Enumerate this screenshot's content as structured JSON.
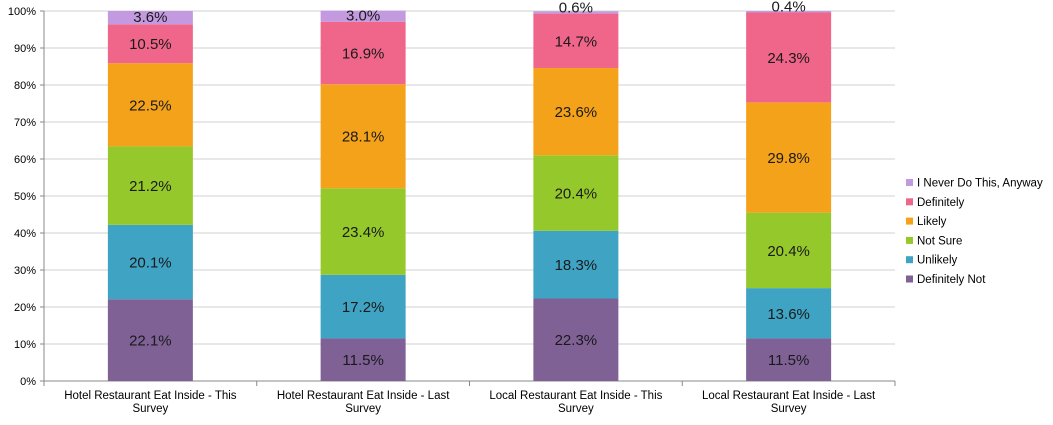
{
  "chart_data": {
    "type": "bar",
    "stacked": true,
    "percent": true,
    "categories": [
      [
        "Hotel Restaurant Eat Inside - This",
        "Survey"
      ],
      [
        "Hotel Restaurant Eat Inside - Last",
        "Survey"
      ],
      [
        "Local Restaurant Eat Inside - This",
        "Survey"
      ],
      [
        "Local Restaurant Eat Inside - Last",
        "Survey"
      ]
    ],
    "series": [
      {
        "name": "Definitely Not",
        "color": "#7f6196",
        "values": [
          22.1,
          11.5,
          22.3,
          11.5
        ],
        "labels": [
          "22.1%",
          "11.5%",
          "22.3%",
          "11.5%"
        ]
      },
      {
        "name": "Unlikely",
        "color": "#3fa3c4",
        "values": [
          20.1,
          17.2,
          18.3,
          13.6
        ],
        "labels": [
          "20.1%",
          "17.2%",
          "18.3%",
          "13.6%"
        ]
      },
      {
        "name": "Not Sure",
        "color": "#95c92b",
        "values": [
          21.2,
          23.4,
          20.4,
          20.4
        ],
        "labels": [
          "21.2%",
          "23.4%",
          "20.4%",
          "20.4%"
        ]
      },
      {
        "name": "Likely",
        "color": "#f5a21b",
        "values": [
          22.5,
          28.1,
          23.6,
          29.8
        ],
        "labels": [
          "22.5%",
          "28.1%",
          "23.6%",
          "29.8%"
        ]
      },
      {
        "name": "Definitely",
        "color": "#f0668a",
        "values": [
          10.5,
          16.9,
          14.7,
          24.3
        ],
        "labels": [
          "10.5%",
          "16.9%",
          "14.7%",
          "24.3%"
        ]
      },
      {
        "name": "I Never Do This, Anyway",
        "color": "#c39ae0",
        "values": [
          3.6,
          3.0,
          0.6,
          0.4
        ],
        "labels": [
          "3.6%",
          "3.0%",
          "0.6%",
          "0.4%"
        ]
      }
    ],
    "yticks": [
      "0%",
      "10%",
      "20%",
      "30%",
      "40%",
      "50%",
      "60%",
      "70%",
      "80%",
      "90%",
      "100%"
    ],
    "ylim": [
      0,
      100
    ],
    "grid": true,
    "legend_position": "right",
    "legend_order": [
      "I Never Do This, Anyway",
      "Definitely",
      "Likely",
      "Not Sure",
      "Unlikely",
      "Definitely Not"
    ]
  }
}
